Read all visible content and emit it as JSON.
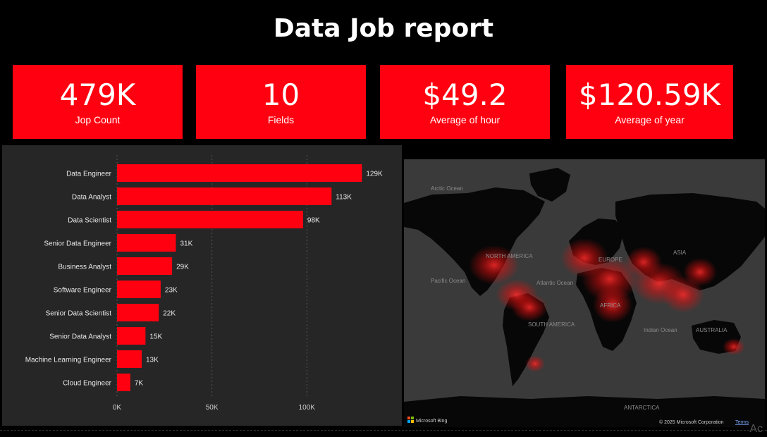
{
  "report": {
    "title": "Data Job report"
  },
  "kpis": [
    {
      "value": "479K",
      "label": "Jop Count"
    },
    {
      "value": "10",
      "label": "Fields"
    },
    {
      "value": "$49.2",
      "label": "Average of hour"
    },
    {
      "value": "$120.59K",
      "label": "Average of year"
    }
  ],
  "chart_data": {
    "type": "bar",
    "orientation": "horizontal",
    "categories": [
      "Data Engineer",
      "Data Analyst",
      "Data Scientist",
      "Senior Data Engineer",
      "Business Analyst",
      "Software Engineer",
      "Senior Data Scientist",
      "Senior Data Analyst",
      "Machine Learning Engineer",
      "Cloud Engineer"
    ],
    "values": [
      129,
      113,
      98,
      31,
      29,
      23,
      22,
      15,
      13,
      7
    ],
    "value_labels": [
      "129K",
      "113K",
      "98K",
      "31K",
      "29K",
      "23K",
      "22K",
      "15K",
      "13K",
      "7K"
    ],
    "xticks": [
      "0K",
      "50K",
      "100K"
    ],
    "xtick_values": [
      0,
      50,
      100
    ],
    "xlim": [
      0,
      140
    ],
    "grid": true,
    "bar_color": "#ff0010",
    "title": "",
    "xlabel": "",
    "ylabel": ""
  },
  "map": {
    "labels": {
      "arctic_ocean": "Arctic Ocean",
      "north_america": "NORTH AMERICA",
      "europe": "EUROPE",
      "asia": "ASIA",
      "pacific_ocean": "Pacific Ocean",
      "atlantic_ocean": "Atlantic Ocean",
      "africa": "AFRICA",
      "south_america": "SOUTH AMERICA",
      "indian_ocean": "Indian Ocean",
      "australia": "AUSTRALIA",
      "antarctica": "ANTARCTICA"
    },
    "brand": "Microsoft Bing",
    "copyright": "© 2025 Microsoft Corporation",
    "terms": "Terms",
    "heat_color": "#ff1a1a"
  },
  "watermark": "Ac"
}
